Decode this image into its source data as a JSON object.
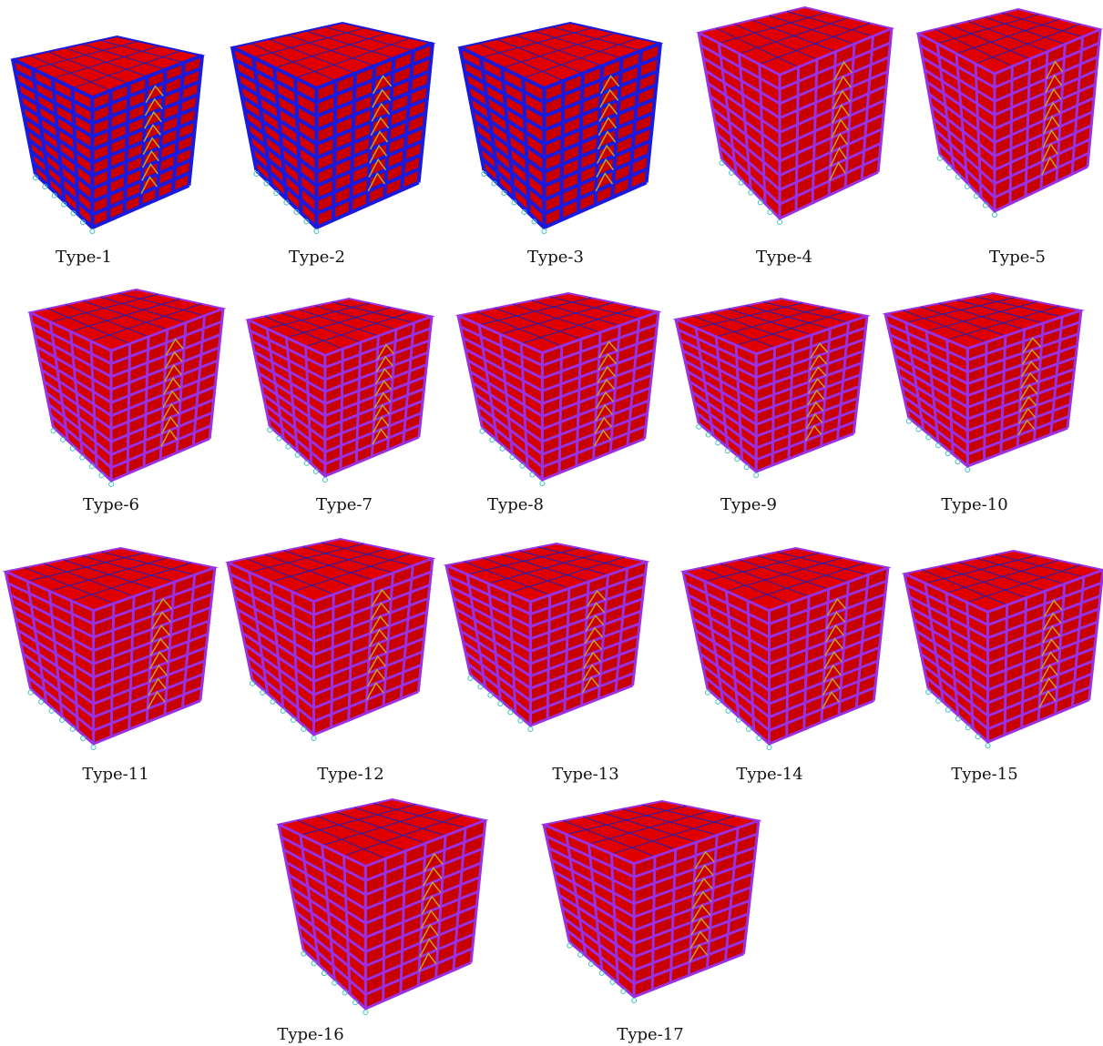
{
  "items": [
    {
      "label": "Type-1"
    },
    {
      "label": "Type-2"
    },
    {
      "label": "Type-3"
    },
    {
      "label": "Type-4"
    },
    {
      "label": "Type-5"
    },
    {
      "label": "Type-6"
    },
    {
      "label": "Type-7"
    },
    {
      "label": "Type-8"
    },
    {
      "label": "Type-9"
    },
    {
      "label": "Type-10"
    },
    {
      "label": "Type-11"
    },
    {
      "label": "Type-12"
    },
    {
      "label": "Type-13"
    },
    {
      "label": "Type-14"
    },
    {
      "label": "Type-15"
    },
    {
      "label": "Type-16"
    },
    {
      "label": "Type-17"
    }
  ]
}
